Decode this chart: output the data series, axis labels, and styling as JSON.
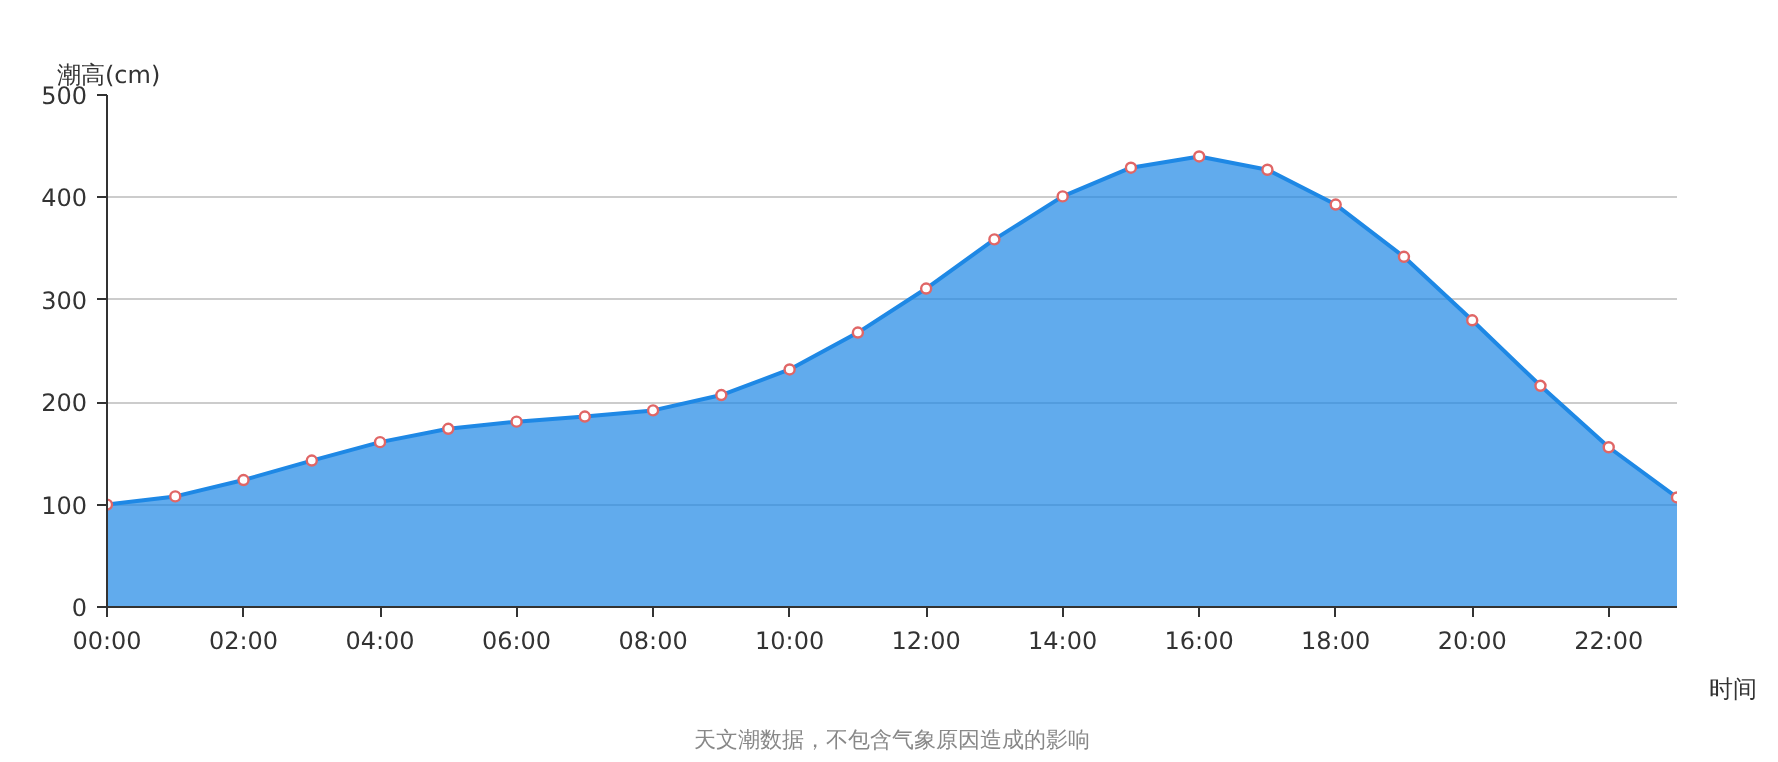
{
  "chart_data": {
    "type": "area",
    "ylabel": "潮高(cm)",
    "xlabel": "时间",
    "categories": [
      "00:00",
      null,
      "02:00",
      null,
      "04:00",
      null,
      "06:00",
      null,
      "08:00",
      null,
      "10:00",
      null,
      "12:00",
      null,
      "14:00",
      null,
      "16:00",
      null,
      "18:00",
      null,
      "20:00",
      null,
      "22:00",
      null
    ],
    "series": [
      {
        "color": "#1e88e5",
        "values": [
          100,
          108,
          124,
          143,
          161,
          174,
          181,
          186,
          192,
          207,
          232,
          268,
          311,
          359,
          401,
          429,
          440,
          427,
          393,
          342,
          280,
          216,
          156,
          107
        ]
      }
    ],
    "ylim": [
      0,
      500
    ],
    "yticks": [
      0,
      100,
      200,
      300,
      400,
      500
    ],
    "grid": "y",
    "marker": "circle",
    "legend": false,
    "annotations": [
      "天文潮数据，不包含气象原因造成的影响"
    ]
  }
}
